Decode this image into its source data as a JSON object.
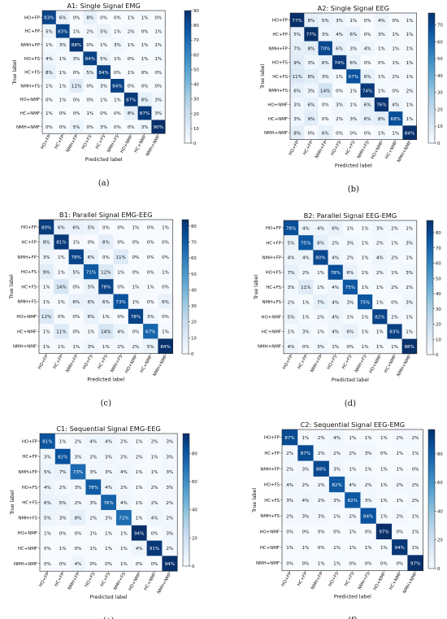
{
  "labels": [
    "HO+FP",
    "HC+FP",
    "NMH+FP",
    "HO+FS",
    "HC+FS",
    "NMH+FS",
    "HO+NMF",
    "HC+NMF",
    "NMH+NMF"
  ],
  "xlabel": "Predicted label",
  "ylabel": "True label",
  "colors": {
    "low": "#f7fbff",
    "high": "#08306b"
  },
  "chart_data": [
    {
      "type": "heatmap",
      "panel": "a",
      "title": "A1: Single Signal EMG",
      "caption": "(a)",
      "colorbar": {
        "ticks": [
          0,
          10,
          20,
          30,
          40,
          50,
          60,
          70,
          80,
          90
        ],
        "max": 90
      },
      "values": [
        [
          83,
          6,
          0,
          8,
          0,
          0,
          1,
          1,
          0
        ],
        [
          5,
          83,
          1,
          2,
          5,
          1,
          2,
          0,
          1
        ],
        [
          1,
          3,
          88,
          0,
          1,
          3,
          1,
          1,
          1
        ],
        [
          4,
          1,
          3,
          84,
          5,
          1,
          0,
          1,
          1
        ],
        [
          8,
          1,
          0,
          5,
          84,
          0,
          1,
          0,
          0
        ],
        [
          1,
          1,
          11,
          0,
          3,
          84,
          0,
          0,
          0
        ],
        [
          0,
          1,
          0,
          0,
          1,
          1,
          87,
          8,
          3
        ],
        [
          1,
          0,
          0,
          1,
          0,
          0,
          8,
          87,
          3
        ],
        [
          0,
          0,
          5,
          0,
          3,
          0,
          0,
          3,
          90
        ]
      ]
    },
    {
      "type": "heatmap",
      "panel": "b",
      "title": "A2: Single Signal EEG",
      "caption": "(b)",
      "colorbar": {
        "ticks": [
          0,
          10,
          20,
          30,
          40,
          50,
          60,
          70
        ],
        "max": 77
      },
      "values": [
        [
          77,
          8,
          5,
          3,
          1,
          0,
          4,
          0,
          1
        ],
        [
          5,
          77,
          3,
          4,
          6,
          0,
          3,
          1,
          1
        ],
        [
          7,
          8,
          70,
          6,
          3,
          4,
          1,
          1,
          1
        ],
        [
          9,
          3,
          6,
          74,
          6,
          0,
          0,
          1,
          1
        ],
        [
          11,
          8,
          3,
          1,
          67,
          6,
          1,
          2,
          1
        ],
        [
          6,
          3,
          14,
          0,
          1,
          74,
          1,
          0,
          2
        ],
        [
          3,
          6,
          0,
          3,
          1,
          6,
          76,
          4,
          1
        ],
        [
          3,
          9,
          0,
          2,
          3,
          6,
          8,
          68,
          1
        ],
        [
          8,
          0,
          6,
          0,
          0,
          0,
          1,
          1,
          84
        ]
      ]
    },
    {
      "type": "heatmap",
      "panel": "c",
      "title": "B1: Parallel Signal EMG-EEG",
      "caption": "(c)",
      "colorbar": {
        "ticks": [
          0,
          10,
          20,
          30,
          40,
          50,
          60,
          70,
          80
        ],
        "max": 84
      },
      "values": [
        [
          80,
          6,
          6,
          5,
          0,
          0,
          1,
          0,
          1
        ],
        [
          8,
          81,
          1,
          0,
          8,
          0,
          0,
          0,
          0
        ],
        [
          3,
          1,
          78,
          6,
          0,
          11,
          0,
          0,
          0
        ],
        [
          9,
          1,
          5,
          71,
          12,
          1,
          0,
          0,
          1
        ],
        [
          1,
          14,
          0,
          5,
          78,
          0,
          1,
          1,
          0
        ],
        [
          1,
          1,
          6,
          6,
          6,
          73,
          1,
          0,
          6
        ],
        [
          12,
          0,
          0,
          6,
          1,
          0,
          78,
          3,
          0
        ],
        [
          1,
          11,
          0,
          1,
          14,
          4,
          0,
          67,
          1
        ],
        [
          1,
          1,
          1,
          3,
          1,
          2,
          2,
          5,
          84
        ]
      ]
    },
    {
      "type": "heatmap",
      "panel": "d",
      "title": "B2: Parallel Signal EEG-EMG",
      "caption": "(d)",
      "colorbar": {
        "ticks": [
          0,
          10,
          20,
          30,
          40,
          50,
          60,
          70,
          80
        ],
        "max": 88
      },
      "values": [
        [
          78,
          4,
          4,
          6,
          1,
          1,
          3,
          2,
          1
        ],
        [
          5,
          75,
          8,
          2,
          3,
          1,
          2,
          1,
          3
        ],
        [
          4,
          4,
          80,
          4,
          2,
          1,
          4,
          2,
          1
        ],
        [
          7,
          2,
          1,
          78,
          6,
          1,
          2,
          1,
          3
        ],
        [
          3,
          11,
          1,
          4,
          75,
          1,
          1,
          2,
          2
        ],
        [
          2,
          1,
          7,
          4,
          3,
          75,
          1,
          0,
          3
        ],
        [
          5,
          1,
          2,
          4,
          1,
          1,
          82,
          2,
          1
        ],
        [
          1,
          3,
          1,
          4,
          6,
          1,
          1,
          83,
          1
        ],
        [
          4,
          0,
          3,
          1,
          0,
          1,
          1,
          1,
          88
        ]
      ]
    },
    {
      "type": "heatmap",
      "panel": "e",
      "title": "C1: Sequential Signal EMG-EEG",
      "caption": "(e)",
      "colorbar": {
        "ticks": [
          0,
          20,
          40,
          60,
          80
        ],
        "max": 94
      },
      "values": [
        [
          81,
          1,
          2,
          4,
          4,
          2,
          1,
          2,
          3
        ],
        [
          3,
          82,
          3,
          2,
          3,
          2,
          2,
          1,
          3
        ],
        [
          5,
          7,
          73,
          3,
          3,
          4,
          1,
          1,
          3
        ],
        [
          4,
          2,
          3,
          78,
          4,
          2,
          1,
          2,
          3
        ],
        [
          6,
          5,
          2,
          3,
          76,
          4,
          1,
          2,
          2
        ],
        [
          5,
          3,
          8,
          2,
          3,
          72,
          1,
          4,
          2
        ],
        [
          1,
          0,
          0,
          1,
          1,
          1,
          94,
          0,
          3
        ],
        [
          0,
          1,
          0,
          1,
          1,
          1,
          4,
          91,
          2
        ],
        [
          0,
          0,
          4,
          0,
          0,
          1,
          0,
          0,
          94
        ]
      ]
    },
    {
      "type": "heatmap",
      "panel": "f",
      "title": "C2: Sequential Signal EEG-EMG",
      "caption": "(f)",
      "colorbar": {
        "ticks": [
          0,
          20,
          40,
          60,
          80
        ],
        "max": 97
      },
      "values": [
        [
          87,
          1,
          2,
          4,
          1,
          1,
          1,
          2,
          2
        ],
        [
          2,
          87,
          2,
          2,
          2,
          3,
          0,
          1,
          1
        ],
        [
          2,
          3,
          88,
          3,
          1,
          1,
          1,
          1,
          0
        ],
        [
          4,
          2,
          2,
          82,
          4,
          2,
          1,
          2,
          2
        ],
        [
          3,
          4,
          2,
          3,
          82,
          3,
          1,
          1,
          2
        ],
        [
          2,
          3,
          3,
          1,
          2,
          84,
          1,
          2,
          1
        ],
        [
          0,
          0,
          0,
          0,
          1,
          0,
          97,
          0,
          1
        ],
        [
          1,
          1,
          0,
          1,
          1,
          1,
          1,
          94,
          1
        ],
        [
          0,
          0,
          1,
          1,
          0,
          0,
          0,
          0,
          97
        ]
      ]
    }
  ]
}
